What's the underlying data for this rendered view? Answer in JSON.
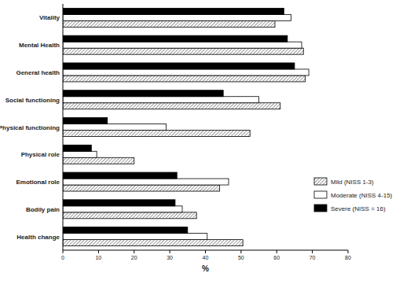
{
  "chart_data": {
    "type": "bar",
    "orientation": "horizontal",
    "categories": [
      "Vitality",
      "Mental Health",
      "General health",
      "Social functioning",
      "Physical functioning",
      "Physical role",
      "Emotional role",
      "Bodily pain",
      "Health change"
    ],
    "series": [
      {
        "name": "Mild (NISS 1-3)",
        "color": "#555555",
        "marker": "hatch",
        "values": [
          59.5,
          67.5,
          68,
          61,
          52.5,
          20,
          44,
          37.5,
          50.5
        ]
      },
      {
        "name": "Moderate (NISS 4-15)",
        "color": "#ffffff",
        "values": [
          64,
          67,
          69,
          55,
          29,
          9.5,
          46.5,
          33.5,
          40.5
        ]
      },
      {
        "name": "Severe (NISS = 16)",
        "color": "#000000",
        "values": [
          62,
          63,
          65,
          45,
          12.5,
          8,
          32,
          31.5,
          35
        ]
      }
    ],
    "x_label": "%",
    "xlim": [
      0,
      80
    ],
    "xticks": [
      0,
      10,
      20,
      30,
      40,
      50,
      60,
      70,
      80
    ],
    "grid": false,
    "legend": "lower right"
  }
}
